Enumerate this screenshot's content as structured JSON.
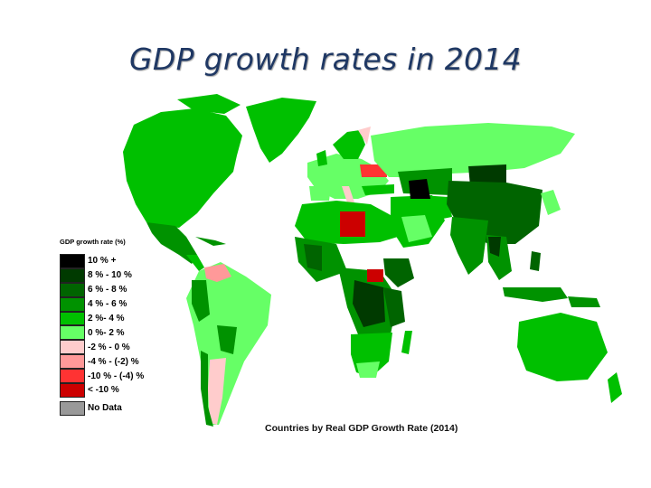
{
  "slide": {
    "title": "GDP growth rates in 2014"
  },
  "map": {
    "caption": "Countries by Real GDP Growth Rate (2014)",
    "legend": {
      "title": "GDP growth rate (%)",
      "items": [
        {
          "label": "10 % +",
          "color": "#000000"
        },
        {
          "label": "8 % - 10 %",
          "color": "#003a00"
        },
        {
          "label": "6 % - 8 %",
          "color": "#006400"
        },
        {
          "label": "4 % - 6 %",
          "color": "#009200"
        },
        {
          "label": "2 %- 4 %",
          "color": "#00c000"
        },
        {
          "label": "0 %- 2 %",
          "color": "#66ff66"
        },
        {
          "label": "-2 % - 0 %",
          "color": "#ffcccc"
        },
        {
          "label": "-4 % - (-2) %",
          "color": "#ff9999"
        },
        {
          "label": "-10 % - (-4) %",
          "color": "#ff3333"
        },
        {
          "label": "< -10 %",
          "color": "#cc0000"
        }
      ],
      "no_data": {
        "label": "No Data",
        "color": "#999999"
      }
    }
  }
}
